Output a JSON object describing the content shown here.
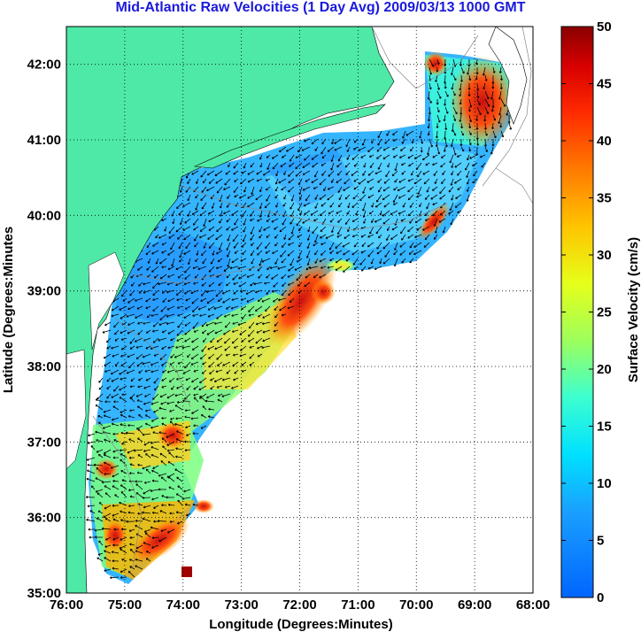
{
  "title": "Mid-Atlantic Raw Velocities (1 Day Avg) 2009/03/13 1000 GMT",
  "map": {
    "xlabel": "Longitude (Degrees:Minutes)",
    "ylabel": "Latitude (Degrees:Minutes",
    "lon_range": [
      -76,
      -68
    ],
    "lat_range": [
      35,
      42.5
    ],
    "lon_ticks": [
      "76:00",
      "75:00",
      "74:00",
      "73:00",
      "72:00",
      "71:00",
      "70:00",
      "69:00",
      "68:00"
    ],
    "lat_ticks": [
      "35:00",
      "36:00",
      "37:00",
      "38:00",
      "39:00",
      "40:00",
      "41:00",
      "42:00"
    ],
    "land_color": "#4ee9a6",
    "grid": "dotted"
  },
  "colorbar": {
    "label": "Surface Velocity (cm/s)",
    "ticks": [
      "0",
      "5",
      "10",
      "15",
      "20",
      "25",
      "30",
      "35",
      "40",
      "45",
      "50"
    ],
    "range": [
      0,
      50
    ],
    "colormap": "jet"
  }
}
